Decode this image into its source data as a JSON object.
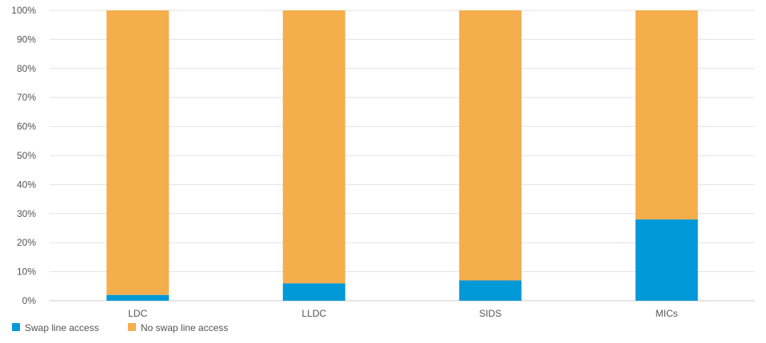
{
  "chart_data": {
    "type": "bar",
    "stacked": true,
    "percent": true,
    "categories": [
      "LDC",
      "LLDC",
      "SIDS",
      "MICs"
    ],
    "series": [
      {
        "name": "Swap line access",
        "values": [
          2,
          6,
          7,
          28
        ],
        "color": "#0099d8"
      },
      {
        "name": "No swap line access",
        "values": [
          98,
          94,
          93,
          72
        ],
        "color": "#f5ae4c"
      }
    ],
    "yticks": [
      "0%",
      "10%",
      "20%",
      "30%",
      "40%",
      "50%",
      "60%",
      "70%",
      "80%",
      "90%",
      "100%"
    ],
    "ylim": [
      0,
      100
    ],
    "grid": true,
    "legend_position": "bottom-left"
  }
}
